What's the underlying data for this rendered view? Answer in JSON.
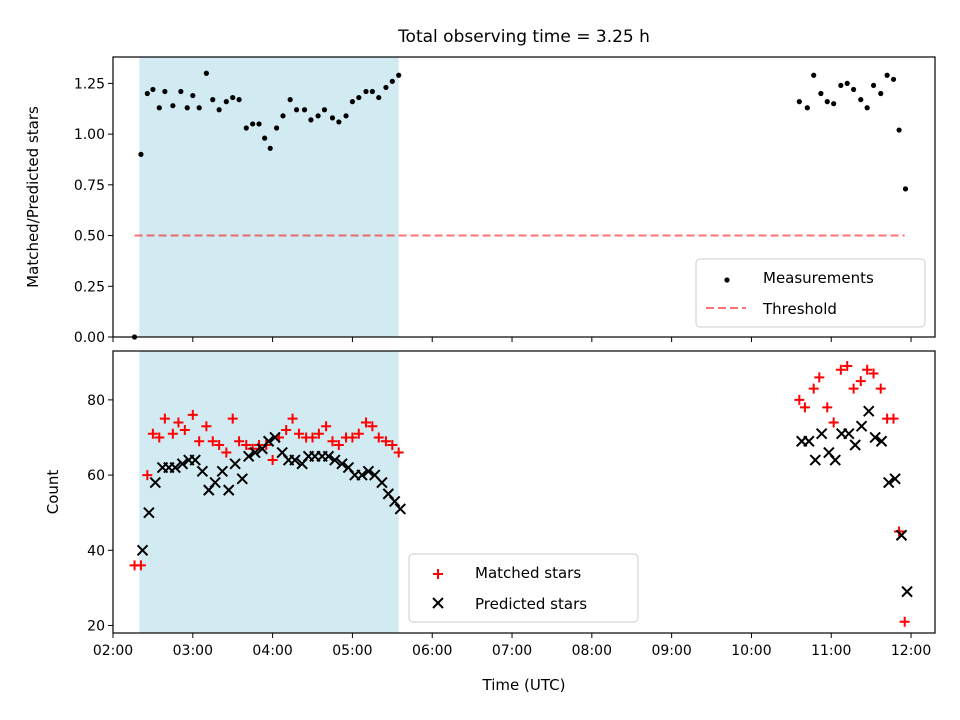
{
  "title": "Total observing time = 3.25 h",
  "colors": {
    "shade": "#add8e6",
    "threshold": "#ff0000",
    "matched": "#ff0000",
    "predicted": "#000000",
    "measurement": "#000000"
  },
  "chart_data": [
    {
      "type": "scatter",
      "ylabel": "Matched/Predicted stars",
      "xlim": [
        2.0,
        12.3
      ],
      "ylim": [
        0.0,
        1.38
      ],
      "yticks": [
        0.0,
        0.25,
        0.5,
        0.75,
        1.0,
        1.25
      ],
      "ytick_labels": [
        "0.00",
        "0.25",
        "0.50",
        "0.75",
        "1.00",
        "1.25"
      ],
      "shaded_span": [
        2.33,
        5.58
      ],
      "threshold": {
        "name": "Threshold",
        "y": 0.5,
        "x_range": [
          2.27,
          11.92
        ]
      },
      "legend": {
        "placement": "lower right",
        "entries": [
          "Measurements",
          "Threshold"
        ]
      },
      "series": [
        {
          "name": "Measurements",
          "points": [
            [
              2.27,
              0.0
            ],
            [
              2.35,
              0.9
            ],
            [
              2.43,
              1.2
            ],
            [
              2.5,
              1.22
            ],
            [
              2.58,
              1.13
            ],
            [
              2.65,
              1.21
            ],
            [
              2.75,
              1.14
            ],
            [
              2.85,
              1.21
            ],
            [
              2.93,
              1.13
            ],
            [
              3.0,
              1.19
            ],
            [
              3.08,
              1.13
            ],
            [
              3.17,
              1.3
            ],
            [
              3.25,
              1.17
            ],
            [
              3.33,
              1.12
            ],
            [
              3.42,
              1.16
            ],
            [
              3.5,
              1.18
            ],
            [
              3.58,
              1.17
            ],
            [
              3.67,
              1.03
            ],
            [
              3.75,
              1.05
            ],
            [
              3.83,
              1.05
            ],
            [
              3.9,
              0.98
            ],
            [
              3.97,
              0.93
            ],
            [
              4.05,
              1.03
            ],
            [
              4.13,
              1.09
            ],
            [
              4.22,
              1.17
            ],
            [
              4.3,
              1.12
            ],
            [
              4.4,
              1.12
            ],
            [
              4.48,
              1.07
            ],
            [
              4.57,
              1.09
            ],
            [
              4.65,
              1.12
            ],
            [
              4.75,
              1.08
            ],
            [
              4.83,
              1.06
            ],
            [
              4.92,
              1.09
            ],
            [
              5.0,
              1.16
            ],
            [
              5.08,
              1.18
            ],
            [
              5.17,
              1.21
            ],
            [
              5.25,
              1.21
            ],
            [
              5.33,
              1.18
            ],
            [
              5.42,
              1.23
            ],
            [
              5.5,
              1.26
            ],
            [
              5.58,
              1.29
            ],
            [
              10.6,
              1.16
            ],
            [
              10.7,
              1.13
            ],
            [
              10.78,
              1.29
            ],
            [
              10.87,
              1.2
            ],
            [
              10.95,
              1.16
            ],
            [
              11.03,
              1.15
            ],
            [
              11.12,
              1.24
            ],
            [
              11.2,
              1.25
            ],
            [
              11.28,
              1.22
            ],
            [
              11.37,
              1.17
            ],
            [
              11.45,
              1.13
            ],
            [
              11.53,
              1.24
            ],
            [
              11.62,
              1.2
            ],
            [
              11.7,
              1.29
            ],
            [
              11.78,
              1.27
            ],
            [
              11.85,
              1.02
            ],
            [
              11.93,
              0.73
            ]
          ]
        }
      ]
    },
    {
      "type": "scatter",
      "xlabel": "Time (UTC)",
      "ylabel": "Count",
      "xlim": [
        2.0,
        12.3
      ],
      "ylim": [
        18,
        93
      ],
      "yticks": [
        20,
        40,
        60,
        80
      ],
      "ytick_labels": [
        "20",
        "40",
        "60",
        "80"
      ],
      "xticks": [
        2,
        3,
        4,
        5,
        6,
        7,
        8,
        9,
        10,
        11,
        12
      ],
      "xtick_labels": [
        "02:00",
        "03:00",
        "04:00",
        "05:00",
        "06:00",
        "07:00",
        "08:00",
        "09:00",
        "10:00",
        "11:00",
        "12:00"
      ],
      "shaded_span": [
        2.33,
        5.58
      ],
      "legend": {
        "placement": "lower center",
        "entries": [
          "Matched stars",
          "Predicted stars"
        ]
      },
      "series": [
        {
          "name": "Matched stars",
          "points": [
            [
              2.27,
              36
            ],
            [
              2.35,
              36
            ],
            [
              2.43,
              60
            ],
            [
              2.5,
              71
            ],
            [
              2.58,
              70
            ],
            [
              2.65,
              75
            ],
            [
              2.75,
              71
            ],
            [
              2.82,
              74
            ],
            [
              2.9,
              72
            ],
            [
              3.0,
              76
            ],
            [
              3.08,
              69
            ],
            [
              3.17,
              73
            ],
            [
              3.25,
              69
            ],
            [
              3.33,
              68
            ],
            [
              3.42,
              66
            ],
            [
              3.5,
              75
            ],
            [
              3.58,
              69
            ],
            [
              3.67,
              68
            ],
            [
              3.75,
              67
            ],
            [
              3.83,
              68
            ],
            [
              3.92,
              68
            ],
            [
              4.0,
              64
            ],
            [
              4.08,
              70
            ],
            [
              4.17,
              72
            ],
            [
              4.25,
              75
            ],
            [
              4.33,
              71
            ],
            [
              4.42,
              70
            ],
            [
              4.5,
              70
            ],
            [
              4.58,
              71
            ],
            [
              4.67,
              73
            ],
            [
              4.75,
              69
            ],
            [
              4.83,
              68
            ],
            [
              4.92,
              70
            ],
            [
              5.0,
              70
            ],
            [
              5.08,
              71
            ],
            [
              5.17,
              74
            ],
            [
              5.25,
              73
            ],
            [
              5.33,
              70
            ],
            [
              5.42,
              69
            ],
            [
              5.5,
              68
            ],
            [
              5.58,
              66
            ],
            [
              10.6,
              80
            ],
            [
              10.67,
              78
            ],
            [
              10.78,
              83
            ],
            [
              10.85,
              86
            ],
            [
              10.95,
              78
            ],
            [
              11.03,
              74
            ],
            [
              11.12,
              88
            ],
            [
              11.2,
              89
            ],
            [
              11.28,
              83
            ],
            [
              11.37,
              85
            ],
            [
              11.45,
              88
            ],
            [
              11.53,
              87
            ],
            [
              11.62,
              83
            ],
            [
              11.7,
              75
            ],
            [
              11.78,
              75
            ],
            [
              11.85,
              45
            ],
            [
              11.92,
              21
            ]
          ]
        },
        {
          "name": "Predicted stars",
          "points": [
            [
              2.37,
              40
            ],
            [
              2.45,
              50
            ],
            [
              2.53,
              58
            ],
            [
              2.62,
              62
            ],
            [
              2.7,
              62
            ],
            [
              2.78,
              62
            ],
            [
              2.87,
              63
            ],
            [
              2.95,
              64
            ],
            [
              3.03,
              64
            ],
            [
              3.12,
              61
            ],
            [
              3.2,
              56
            ],
            [
              3.28,
              58
            ],
            [
              3.37,
              61
            ],
            [
              3.45,
              56
            ],
            [
              3.53,
              63
            ],
            [
              3.62,
              59
            ],
            [
              3.7,
              65
            ],
            [
              3.78,
              66
            ],
            [
              3.87,
              67
            ],
            [
              3.95,
              69
            ],
            [
              4.03,
              70
            ],
            [
              4.12,
              66
            ],
            [
              4.2,
              64
            ],
            [
              4.28,
              64
            ],
            [
              4.37,
              63
            ],
            [
              4.45,
              65
            ],
            [
              4.53,
              65
            ],
            [
              4.62,
              65
            ],
            [
              4.7,
              65
            ],
            [
              4.78,
              64
            ],
            [
              4.87,
              63
            ],
            [
              4.95,
              62
            ],
            [
              5.03,
              60
            ],
            [
              5.12,
              60
            ],
            [
              5.2,
              61
            ],
            [
              5.28,
              60
            ],
            [
              5.37,
              58
            ],
            [
              5.45,
              55
            ],
            [
              5.53,
              53
            ],
            [
              5.6,
              51
            ],
            [
              10.63,
              69
            ],
            [
              10.72,
              69
            ],
            [
              10.8,
              64
            ],
            [
              10.88,
              71
            ],
            [
              10.97,
              66
            ],
            [
              11.05,
              64
            ],
            [
              11.13,
              71
            ],
            [
              11.22,
              71
            ],
            [
              11.3,
              68
            ],
            [
              11.38,
              73
            ],
            [
              11.47,
              77
            ],
            [
              11.55,
              70
            ],
            [
              11.63,
              69
            ],
            [
              11.72,
              58
            ],
            [
              11.8,
              59
            ],
            [
              11.88,
              44
            ],
            [
              11.95,
              29
            ]
          ]
        }
      ]
    }
  ]
}
